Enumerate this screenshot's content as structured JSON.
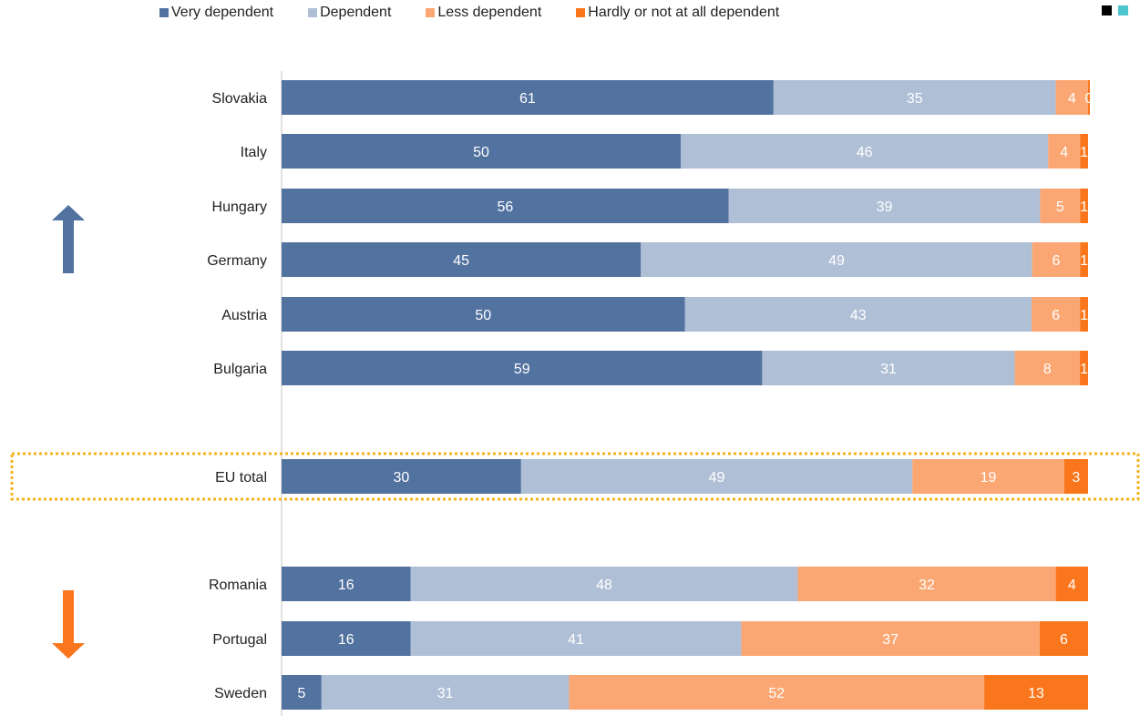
{
  "chart_data": {
    "type": "bar",
    "orientation": "horizontal",
    "stacked": true,
    "categories": [
      "Slovakia",
      "Italy",
      "Hungary",
      "Germany",
      "Austria",
      "Bulgaria",
      "EU total",
      "Romania",
      "Portugal",
      "Sweden"
    ],
    "series": [
      {
        "name": "Very dependent",
        "values": [
          61,
          50,
          56,
          45,
          50,
          59,
          30,
          16,
          16,
          5
        ]
      },
      {
        "name": "Dependent",
        "values": [
          35,
          46,
          39,
          49,
          43,
          31,
          49,
          48,
          41,
          31
        ]
      },
      {
        "name": "Less dependent",
        "values": [
          4,
          4,
          5,
          6,
          6,
          8,
          19,
          32,
          37,
          52
        ]
      },
      {
        "name": "Hardly or not at all dependent",
        "values": [
          0,
          1,
          1,
          1,
          1,
          1,
          3,
          4,
          6,
          13
        ]
      }
    ],
    "colors": [
      "#52729f",
      "#afbfd6",
      "#fba773",
      "#fa761c"
    ],
    "highlight_category": "EU total",
    "highlight_color": "#f4b31c",
    "up_arrow_color": "#52729f",
    "down_arrow_color": "#fa761c",
    "corner_swatch_colors": [
      "#000000",
      "#4bc6cc"
    ],
    "legend_position": "top-left",
    "grid": false
  }
}
